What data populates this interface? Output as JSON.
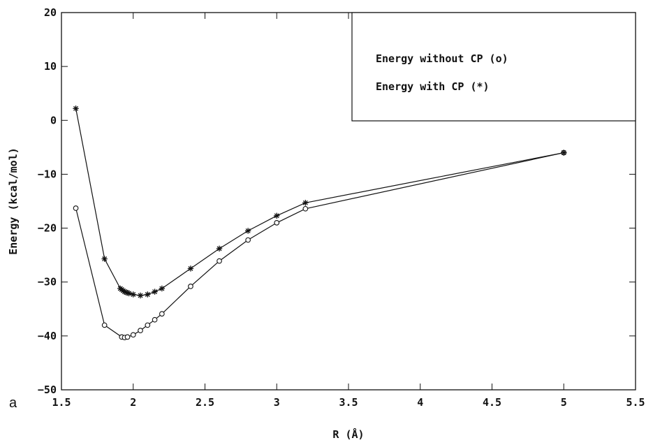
{
  "panel_label": "a",
  "chart_data": {
    "type": "line",
    "title": "",
    "xlabel": "R (Å)",
    "ylabel": "Energy (kcal/mol)",
    "xlim": [
      1.5,
      5.5
    ],
    "ylim": [
      -50,
      20
    ],
    "xticks": [
      "1.5",
      "2",
      "2.5",
      "3",
      "3.5",
      "4",
      "4.5",
      "5",
      "5.5"
    ],
    "yticks": [
      "20",
      "10",
      "0",
      "-10",
      "-20",
      "-30",
      "-40",
      "-50"
    ],
    "grid": false,
    "legend_position": "top-right",
    "legend": [
      "Energy without CP (o)",
      "Energy with CP (*)"
    ],
    "series": [
      {
        "name": "Energy without CP (o)",
        "marker": "circle",
        "x": [
          1.6,
          1.8,
          1.92,
          1.94,
          1.96,
          2.0,
          2.05,
          2.1,
          2.15,
          2.2,
          2.4,
          2.6,
          2.8,
          3.0,
          3.2,
          5.0
        ],
        "y": [
          -16.3,
          -38.0,
          -40.2,
          -40.3,
          -40.2,
          -39.8,
          -39.0,
          -38.0,
          -37.0,
          -35.9,
          -30.8,
          -26.1,
          -22.2,
          -19.0,
          -16.4,
          -6.0
        ]
      },
      {
        "name": "Energy with CP (*)",
        "marker": "star",
        "x": [
          1.6,
          1.8,
          1.91,
          1.92,
          1.93,
          1.94,
          1.95,
          1.96,
          1.97,
          2.0,
          2.05,
          2.1,
          2.15,
          2.2,
          2.4,
          2.6,
          2.8,
          3.0,
          3.2,
          5.0
        ],
        "y": [
          2.2,
          -25.7,
          -31.2,
          -31.4,
          -31.6,
          -31.8,
          -31.9,
          -32.0,
          -32.1,
          -32.3,
          -32.5,
          -32.3,
          -31.8,
          -31.2,
          -27.5,
          -23.8,
          -20.5,
          -17.7,
          -15.3,
          -6.0
        ]
      }
    ]
  }
}
